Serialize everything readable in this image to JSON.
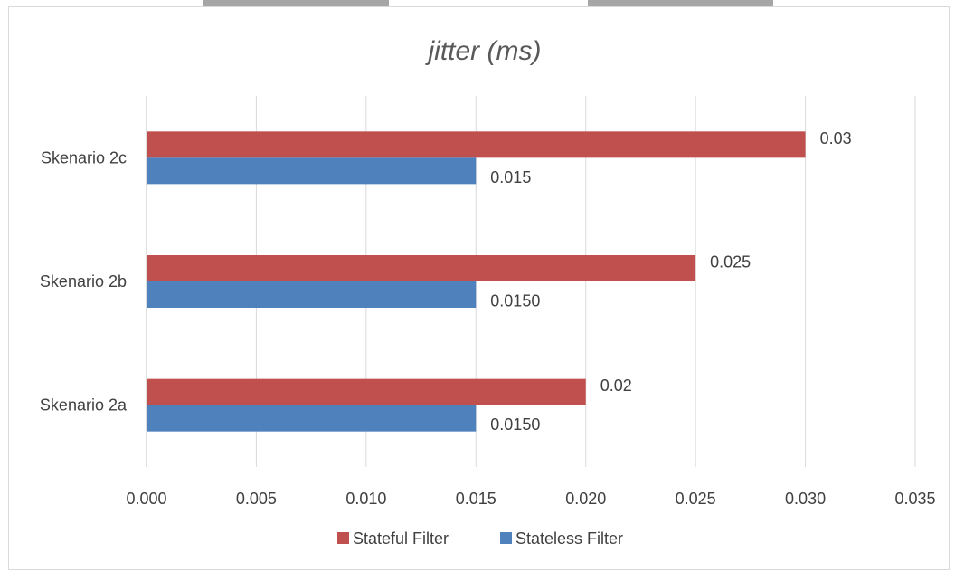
{
  "chart_data": {
    "type": "bar",
    "orientation": "horizontal",
    "title": "jitter (ms)",
    "categories": [
      "Skenario 2a",
      "Skenario 2b",
      "Skenario 2c"
    ],
    "series": [
      {
        "name": "Stateful Filter",
        "color": "#C0504D",
        "values": [
          0.02,
          0.025,
          0.03
        ],
        "labels": [
          "0.02",
          "0.025",
          "0.03"
        ]
      },
      {
        "name": "Stateless Filter",
        "color": "#4F81BD",
        "values": [
          0.015,
          0.015,
          0.015
        ],
        "labels": [
          "0.0150",
          "0.0150",
          "0.015"
        ]
      }
    ],
    "xlim": [
      0,
      0.035
    ],
    "xticks": [
      0.0,
      0.005,
      0.01,
      0.015,
      0.02,
      0.025,
      0.03,
      0.035
    ],
    "xtick_labels": [
      "0.000",
      "0.005",
      "0.010",
      "0.015",
      "0.020",
      "0.025",
      "0.030",
      "0.035"
    ],
    "grid": true,
    "legend_position": "bottom"
  }
}
